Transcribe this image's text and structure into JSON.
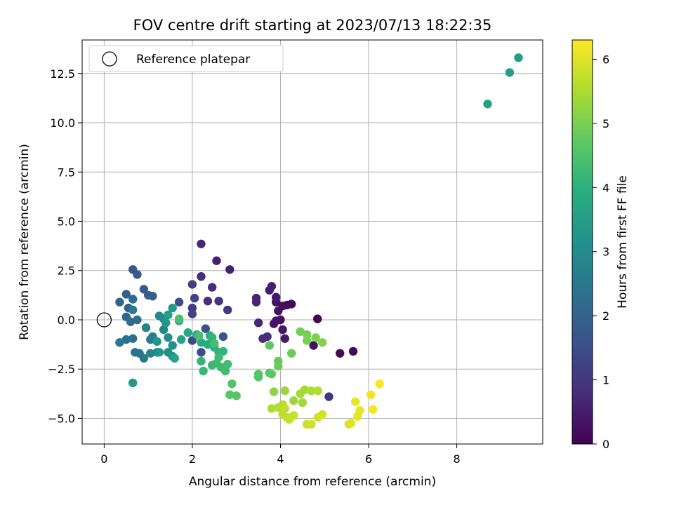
{
  "chart_data": {
    "type": "scatter",
    "title": "FOV centre drift starting at 2023/07/13 18:22:35",
    "xlabel": "Angular distance from reference (arcmin)",
    "ylabel": "Rotation from reference (arcmin)",
    "xlim": [
      -0.5,
      9.95
    ],
    "ylim": [
      -6.3,
      14.2
    ],
    "xticks": [
      0,
      2,
      4,
      6,
      8
    ],
    "yticks": [
      -5.0,
      -2.5,
      0.0,
      2.5,
      5.0,
      7.5,
      10.0,
      12.5
    ],
    "xtick_labels": [
      "0",
      "2",
      "4",
      "6",
      "8"
    ],
    "ytick_labels": [
      "−5.0",
      "−2.5",
      "0.0",
      "2.5",
      "5.0",
      "7.5",
      "10.0",
      "12.5"
    ],
    "grid": true,
    "legend": {
      "location": "upper-left",
      "entries": [
        {
          "label": "Reference platepar",
          "marker": "open-circle",
          "x": 0,
          "y": 0
        }
      ]
    },
    "colorbar": {
      "label": "Hours from first FF file",
      "colormap": "viridis",
      "range": [
        0,
        6.3
      ],
      "ticks": [
        0,
        1,
        2,
        3,
        4,
        5,
        6
      ],
      "tick_labels": [
        "0",
        "1",
        "2",
        "3",
        "4",
        "5",
        "6"
      ]
    },
    "points": [
      [
        4.84,
        0.05,
        0.05
      ],
      [
        4.25,
        0.8,
        0.1
      ],
      [
        4.15,
        0.75,
        0.15
      ],
      [
        5.35,
        -1.7,
        0.1
      ],
      [
        5.65,
        -1.6,
        0.15
      ],
      [
        4.05,
        0.7,
        0.2
      ],
      [
        3.95,
        0.45,
        0.3
      ],
      [
        4.0,
        0.0,
        0.3
      ],
      [
        3.9,
        0.9,
        0.25
      ],
      [
        3.85,
        -0.2,
        0.35
      ],
      [
        3.9,
        -0.05,
        0.35
      ],
      [
        4.05,
        -0.5,
        0.4
      ],
      [
        4.75,
        -1.3,
        0.3
      ],
      [
        4.1,
        -0.95,
        0.45
      ],
      [
        3.8,
        1.7,
        0.5
      ],
      [
        3.75,
        1.5,
        0.55
      ],
      [
        3.9,
        1.15,
        0.45
      ],
      [
        3.45,
        1.1,
        0.6
      ],
      [
        3.45,
        0.9,
        0.65
      ],
      [
        3.5,
        -0.15,
        0.7
      ],
      [
        3.6,
        -0.95,
        0.75
      ],
      [
        3.7,
        -0.85,
        0.8
      ],
      [
        2.85,
        2.55,
        0.6
      ],
      [
        2.55,
        3.0,
        0.55
      ],
      [
        2.2,
        3.85,
        0.7
      ],
      [
        2.2,
        2.2,
        0.8
      ],
      [
        2.45,
        1.65,
        0.85
      ],
      [
        2.35,
        0.95,
        0.9
      ],
      [
        2.6,
        0.95,
        0.95
      ],
      [
        2.8,
        0.5,
        1.0
      ],
      [
        2.0,
        0.6,
        1.1
      ],
      [
        2.0,
        1.8,
        1.2
      ],
      [
        2.05,
        1.1,
        1.25
      ],
      [
        5.1,
        -3.9,
        1.0
      ],
      [
        2.0,
        0.3,
        1.3
      ],
      [
        2.2,
        -1.65,
        1.4
      ],
      [
        2.0,
        -1.05,
        1.45
      ],
      [
        1.7,
        0.9,
        1.5
      ],
      [
        2.3,
        -0.45,
        1.55
      ],
      [
        2.7,
        -0.85,
        1.6
      ],
      [
        0.65,
        2.55,
        1.7
      ],
      [
        0.75,
        2.3,
        1.75
      ],
      [
        0.9,
        1.55,
        1.8
      ],
      [
        1.0,
        1.25,
        1.85
      ],
      [
        1.1,
        1.2,
        1.9
      ],
      [
        0.5,
        1.3,
        1.95
      ],
      [
        0.55,
        0.6,
        2.0
      ],
      [
        0.35,
        0.9,
        2.05
      ],
      [
        0.5,
        0.15,
        2.1
      ],
      [
        0.65,
        1.05,
        2.15
      ],
      [
        0.75,
        0.0,
        2.2
      ],
      [
        0.6,
        -0.1,
        2.25
      ],
      [
        0.65,
        -0.95,
        2.3
      ],
      [
        0.5,
        -1.0,
        2.35
      ],
      [
        0.7,
        -1.65,
        2.4
      ],
      [
        0.8,
        -1.7,
        2.45
      ],
      [
        0.9,
        -1.95,
        2.5
      ],
      [
        0.35,
        -1.15,
        2.55
      ],
      [
        0.65,
        0.5,
        2.6
      ],
      [
        1.05,
        -1.0,
        2.65
      ],
      [
        1.1,
        -0.85,
        2.7
      ],
      [
        0.95,
        -0.4,
        2.75
      ],
      [
        1.05,
        -1.7,
        2.8
      ],
      [
        1.2,
        -1.65,
        2.85
      ],
      [
        1.35,
        -0.5,
        2.9
      ],
      [
        1.25,
        0.2,
        2.95
      ],
      [
        1.35,
        0.05,
        3.0
      ],
      [
        1.45,
        -0.9,
        3.05
      ],
      [
        1.45,
        -1.65,
        3.1
      ],
      [
        1.55,
        -1.3,
        3.15
      ],
      [
        1.55,
        -1.85,
        3.2
      ],
      [
        1.25,
        -1.65,
        3.25
      ],
      [
        1.2,
        -1.1,
        3.3
      ],
      [
        1.4,
        -0.15,
        3.35
      ],
      [
        1.55,
        0.6,
        3.4
      ],
      [
        0.65,
        -3.2,
        3.4
      ],
      [
        9.4,
        13.3,
        3.45
      ],
      [
        9.2,
        12.55,
        3.5
      ],
      [
        8.7,
        10.95,
        3.55
      ],
      [
        1.45,
        0.25,
        3.5
      ],
      [
        1.7,
        -0.05,
        3.6
      ],
      [
        1.75,
        -1.0,
        3.65
      ],
      [
        1.6,
        -1.95,
        3.7
      ],
      [
        1.9,
        -0.65,
        3.75
      ],
      [
        2.1,
        -0.75,
        3.8
      ],
      [
        2.2,
        -1.15,
        3.85
      ],
      [
        2.35,
        -1.25,
        3.9
      ],
      [
        2.4,
        -0.8,
        3.95
      ],
      [
        2.5,
        -1.4,
        4.0
      ],
      [
        2.6,
        -1.65,
        4.05
      ],
      [
        2.7,
        -1.6,
        4.1
      ],
      [
        2.45,
        -0.9,
        4.1
      ],
      [
        2.2,
        -2.1,
        4.15
      ],
      [
        2.25,
        -2.6,
        4.2
      ],
      [
        2.45,
        -2.3,
        4.2
      ],
      [
        2.55,
        -2.2,
        4.25
      ],
      [
        2.6,
        -1.9,
        4.3
      ],
      [
        2.65,
        -2.4,
        4.3
      ],
      [
        2.75,
        -2.6,
        4.35
      ],
      [
        2.8,
        -2.25,
        4.35
      ],
      [
        2.5,
        -1.2,
        4.4
      ],
      [
        2.15,
        -0.8,
        4.4
      ],
      [
        1.7,
        0.05,
        4.45
      ],
      [
        2.9,
        -3.25,
        4.55
      ],
      [
        2.85,
        -3.8,
        4.6
      ],
      [
        3.0,
        -3.85,
        4.6
      ],
      [
        3.5,
        -2.9,
        4.55
      ],
      [
        3.5,
        -2.75,
        4.6
      ],
      [
        3.75,
        -2.7,
        4.65
      ],
      [
        3.8,
        -2.75,
        4.7
      ],
      [
        3.75,
        -1.3,
        4.7
      ],
      [
        3.95,
        -2.1,
        4.75
      ],
      [
        3.95,
        -2.35,
        4.8
      ],
      [
        4.25,
        -1.7,
        4.85
      ],
      [
        4.45,
        -0.6,
        4.9
      ],
      [
        4.6,
        -0.75,
        4.95
      ],
      [
        4.6,
        -1.05,
        5.0
      ],
      [
        4.8,
        -0.9,
        5.05
      ],
      [
        4.95,
        -1.15,
        5.1
      ],
      [
        3.85,
        -3.65,
        5.2
      ],
      [
        4.1,
        -3.6,
        5.3
      ],
      [
        4.45,
        -3.75,
        5.4
      ],
      [
        4.55,
        -3.55,
        5.45
      ],
      [
        4.7,
        -3.6,
        5.5
      ],
      [
        4.85,
        -3.6,
        5.55
      ],
      [
        4.3,
        -4.1,
        5.35
      ],
      [
        4.5,
        -4.2,
        5.4
      ],
      [
        3.8,
        -4.5,
        5.5
      ],
      [
        3.95,
        -4.45,
        5.55
      ],
      [
        4.05,
        -4.3,
        5.6
      ],
      [
        4.05,
        -4.8,
        5.65
      ],
      [
        4.15,
        -4.95,
        5.7
      ],
      [
        4.2,
        -5.05,
        5.75
      ],
      [
        4.3,
        -4.85,
        5.75
      ],
      [
        4.1,
        -4.5,
        5.7
      ],
      [
        4.6,
        -5.3,
        5.8
      ],
      [
        4.7,
        -5.3,
        5.85
      ],
      [
        4.85,
        -4.95,
        5.85
      ],
      [
        4.95,
        -4.8,
        5.9
      ],
      [
        5.55,
        -5.3,
        5.95
      ],
      [
        5.6,
        -5.25,
        6.0
      ],
      [
        5.75,
        -4.9,
        6.05
      ],
      [
        5.8,
        -4.6,
        6.1
      ],
      [
        5.7,
        -4.15,
        6.1
      ],
      [
        6.05,
        -3.8,
        6.15
      ],
      [
        6.1,
        -4.55,
        6.2
      ],
      [
        6.25,
        -3.25,
        6.25
      ]
    ]
  }
}
